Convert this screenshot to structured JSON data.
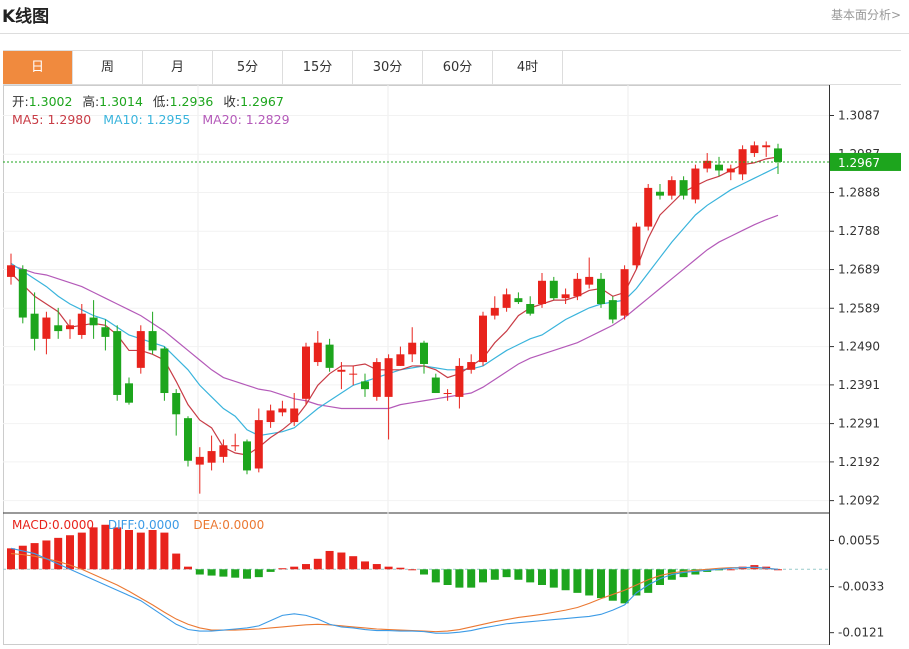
{
  "header": {
    "title": "K线图",
    "more_link": "基本面分析>"
  },
  "tabs": [
    {
      "label": "日",
      "active": true
    },
    {
      "label": "周",
      "active": false
    },
    {
      "label": "月",
      "active": false
    },
    {
      "label": "5分",
      "active": false
    },
    {
      "label": "15分",
      "active": false
    },
    {
      "label": "30分",
      "active": false
    },
    {
      "label": "60分",
      "active": false
    },
    {
      "label": "4时",
      "active": false
    }
  ],
  "colors": {
    "up": "#e8231c",
    "down": "#1da51d",
    "ma5": "#c83c46",
    "ma10": "#3ab4dc",
    "ma20": "#b45ab9",
    "dif": "#3c9be6",
    "dea": "#eb7832",
    "price_tag": "#1da51d",
    "accent_tab": "#f08a3e"
  },
  "chart_data": [
    {
      "type": "candlestick",
      "title": "",
      "info": {
        "open_label": "开:",
        "open": "1.3002",
        "high_label": "高:",
        "high": "1.3014",
        "low_label": "低:",
        "low": "1.2936",
        "close_label": "收:",
        "close": "1.2967"
      },
      "ma_legend": [
        {
          "name": "MA5",
          "text": "MA5: 1.2980"
        },
        {
          "name": "MA10",
          "text": "MA10: 1.2955"
        },
        {
          "name": "MA20",
          "text": "MA20: 1.2829"
        }
      ],
      "current_price": "1.2967",
      "ylim": [
        1.206,
        1.314
      ],
      "yticks": [
        "1.3087",
        "1.2987",
        "1.2888",
        "1.2788",
        "1.2689",
        "1.2589",
        "1.2490",
        "1.2391",
        "1.2291",
        "1.2192",
        "1.2092"
      ],
      "grid": true,
      "candles": [
        [
          1.267,
          1.27,
          1.273,
          1.265
        ],
        [
          1.269,
          1.2565,
          1.27,
          1.255
        ],
        [
          1.2575,
          1.251,
          1.263,
          1.248
        ],
        [
          1.251,
          1.2565,
          1.258,
          1.247
        ],
        [
          1.2545,
          1.253,
          1.259,
          1.251
        ],
        [
          1.2535,
          1.2545,
          1.256,
          1.251
        ],
        [
          1.252,
          1.2575,
          1.26,
          1.251
        ],
        [
          1.2565,
          1.2545,
          1.261,
          1.251
        ],
        [
          1.254,
          1.2515,
          1.256,
          1.248
        ],
        [
          1.253,
          1.2365,
          1.2545,
          1.235
        ],
        [
          1.2395,
          1.2345,
          1.241,
          1.234
        ],
        [
          1.2435,
          1.253,
          1.2545,
          1.242
        ],
        [
          1.253,
          1.248,
          1.258,
          1.247
        ],
        [
          1.2485,
          1.237,
          1.249,
          1.235
        ],
        [
          1.237,
          1.2315,
          1.238,
          1.226
        ],
        [
          1.2305,
          1.2195,
          1.231,
          1.218
        ],
        [
          1.2185,
          1.2205,
          1.223,
          1.211
        ],
        [
          1.219,
          1.222,
          1.226,
          1.217
        ],
        [
          1.2205,
          1.2235,
          1.225,
          1.219
        ],
        [
          1.2235,
          1.2235,
          1.2265,
          1.222
        ],
        [
          1.2245,
          1.217,
          1.225,
          1.216
        ],
        [
          1.2175,
          1.23,
          1.233,
          1.2165
        ],
        [
          1.2295,
          1.2325,
          1.234,
          1.228
        ],
        [
          1.232,
          1.233,
          1.235,
          1.231
        ],
        [
          1.2295,
          1.233,
          1.237,
          1.2285
        ],
        [
          1.2355,
          1.249,
          1.25,
          1.234
        ],
        [
          1.245,
          1.25,
          1.253,
          1.244
        ],
        [
          1.2495,
          1.2435,
          1.251,
          1.2425
        ],
        [
          1.2425,
          1.243,
          1.245,
          1.238
        ],
        [
          1.242,
          1.242,
          1.244,
          1.239
        ],
        [
          1.24,
          1.238,
          1.242,
          1.236
        ],
        [
          1.236,
          1.245,
          1.246,
          1.235
        ],
        [
          1.236,
          1.246,
          1.247,
          1.225
        ],
        [
          1.244,
          1.247,
          1.249,
          1.244
        ],
        [
          1.247,
          1.25,
          1.254,
          1.245
        ],
        [
          1.25,
          1.2445,
          1.2505,
          1.242
        ],
        [
          1.241,
          1.237,
          1.242,
          1.237
        ],
        [
          1.237,
          1.237,
          1.238,
          1.235
        ],
        [
          1.236,
          1.244,
          1.246,
          1.233
        ],
        [
          1.243,
          1.245,
          1.247,
          1.242
        ],
        [
          1.245,
          1.257,
          1.258,
          1.244
        ],
        [
          1.257,
          1.259,
          1.262,
          1.256
        ],
        [
          1.259,
          1.2625,
          1.264,
          1.258
        ],
        [
          1.2615,
          1.2605,
          1.263,
          1.26
        ],
        [
          1.26,
          1.2575,
          1.262,
          1.257
        ],
        [
          1.26,
          1.266,
          1.268,
          1.259
        ],
        [
          1.266,
          1.2615,
          1.267,
          1.261
        ],
        [
          1.2615,
          1.2625,
          1.264,
          1.26
        ],
        [
          1.262,
          1.2665,
          1.268,
          1.261
        ],
        [
          1.265,
          1.267,
          1.272,
          1.264
        ],
        [
          1.2665,
          1.26,
          1.268,
          1.259
        ],
        [
          1.261,
          1.256,
          1.262,
          1.255
        ],
        [
          1.257,
          1.269,
          1.27,
          1.256
        ],
        [
          1.27,
          1.28,
          1.281,
          1.269
        ],
        [
          1.28,
          1.29,
          1.291,
          1.279
        ],
        [
          1.289,
          1.288,
          1.291,
          1.287
        ],
        [
          1.288,
          1.292,
          1.293,
          1.287
        ],
        [
          1.292,
          1.288,
          1.293,
          1.287
        ],
        [
          1.287,
          1.295,
          1.296,
          1.286
        ],
        [
          1.295,
          1.297,
          1.299,
          1.294
        ],
        [
          1.296,
          1.2945,
          1.298,
          1.293
        ],
        [
          1.294,
          1.295,
          1.296,
          1.292
        ],
        [
          1.2935,
          1.3,
          1.301,
          1.292
        ],
        [
          1.299,
          1.301,
          1.302,
          1.298
        ],
        [
          1.3005,
          1.301,
          1.302,
          1.298
        ],
        [
          1.3002,
          1.2967,
          1.3014,
          1.2936
        ]
      ],
      "ma5": [
        1.268,
        1.265,
        1.262,
        1.26,
        1.258,
        1.254,
        1.2545,
        1.255,
        1.2545,
        1.252,
        1.248,
        1.248,
        1.247,
        1.2455,
        1.24,
        1.234,
        1.23,
        1.228,
        1.223,
        1.2215,
        1.221,
        1.223,
        1.2255,
        1.2275,
        1.23,
        1.234,
        1.239,
        1.242,
        1.244,
        1.244,
        1.2445,
        1.243,
        1.243,
        1.243,
        1.244,
        1.244,
        1.243,
        1.241,
        1.242,
        1.244,
        1.246,
        1.25,
        1.253,
        1.257,
        1.259,
        1.26,
        1.261,
        1.261,
        1.262,
        1.2635,
        1.264,
        1.262,
        1.263,
        1.269,
        1.277,
        1.283,
        1.286,
        1.289,
        1.2905,
        1.292,
        1.293,
        1.2945,
        1.296,
        1.2965,
        1.2975,
        1.298
      ],
      "ma10": [
        1.2705,
        1.2685,
        1.2665,
        1.2645,
        1.262,
        1.26,
        1.2585,
        1.257,
        1.256,
        1.254,
        1.252,
        1.251,
        1.25,
        1.249,
        1.246,
        1.243,
        1.239,
        1.236,
        1.233,
        1.231,
        1.2275,
        1.226,
        1.2265,
        1.227,
        1.228,
        1.2305,
        1.233,
        1.235,
        1.237,
        1.239,
        1.24,
        1.241,
        1.242,
        1.243,
        1.2435,
        1.244,
        1.2435,
        1.243,
        1.243,
        1.2432,
        1.244,
        1.246,
        1.248,
        1.2495,
        1.251,
        1.252,
        1.254,
        1.256,
        1.2575,
        1.259,
        1.26,
        1.2605,
        1.261,
        1.264,
        1.268,
        1.272,
        1.276,
        1.2795,
        1.283,
        1.2855,
        1.2875,
        1.2895,
        1.291,
        1.2925,
        1.294,
        1.2955
      ],
      "ma20": [
        1.27,
        1.269,
        1.268,
        1.2675,
        1.2665,
        1.2655,
        1.2645,
        1.263,
        1.2615,
        1.26,
        1.2585,
        1.257,
        1.255,
        1.253,
        1.2505,
        1.248,
        1.2455,
        1.243,
        1.241,
        1.24,
        1.239,
        1.238,
        1.2375,
        1.2365,
        1.2355,
        1.235,
        1.234,
        1.2335,
        1.233,
        1.233,
        1.233,
        1.233,
        1.233,
        1.234,
        1.2345,
        1.235,
        1.2355,
        1.236,
        1.2365,
        1.237,
        1.2385,
        1.2405,
        1.2425,
        1.2445,
        1.246,
        1.247,
        1.248,
        1.249,
        1.25,
        1.2515,
        1.253,
        1.2545,
        1.2565,
        1.259,
        1.2615,
        1.264,
        1.2665,
        1.269,
        1.2715,
        1.274,
        1.276,
        1.2775,
        1.279,
        1.2805,
        1.2818,
        1.2829
      ]
    },
    {
      "type": "macd",
      "title": "",
      "legend": [
        {
          "name": "MACD",
          "text": "MACD:0.0000"
        },
        {
          "name": "DIFF",
          "text": "DIFF:0.0000"
        },
        {
          "name": "DEA",
          "text": "DEA:0.0000"
        }
      ],
      "ylim": [
        -0.0135,
        0.0075
      ],
      "yticks": [
        "0.0055",
        "-0.0033",
        "-0.0121"
      ],
      "grid": true,
      "macd": [
        0.004,
        0.0045,
        0.005,
        0.0055,
        0.006,
        0.0065,
        0.007,
        0.008,
        0.0085,
        0.008,
        0.0075,
        0.007,
        0.0075,
        0.007,
        0.003,
        0.0005,
        -0.001,
        -0.0012,
        -0.0014,
        -0.0016,
        -0.0018,
        -0.0015,
        -0.0005,
        0.0002,
        0.0005,
        0.001,
        0.002,
        0.0035,
        0.0032,
        0.0025,
        0.0015,
        0.001,
        0.0005,
        0.0003,
        0.0,
        -0.001,
        -0.0025,
        -0.003,
        -0.0035,
        -0.0035,
        -0.0025,
        -0.002,
        -0.0015,
        -0.002,
        -0.0025,
        -0.003,
        -0.0035,
        -0.004,
        -0.0045,
        -0.005,
        -0.0055,
        -0.006,
        -0.0065,
        -0.005,
        -0.0045,
        -0.003,
        -0.002,
        -0.0015,
        -0.001,
        -0.0005,
        -0.0002,
        0.0,
        0.0005,
        0.0008,
        0.0005,
        0.0
      ],
      "dif": [
        0.004,
        0.0035,
        0.003,
        0.002,
        0.001,
        0.0,
        -0.001,
        -0.002,
        -0.003,
        -0.004,
        -0.005,
        -0.006,
        -0.0075,
        -0.009,
        -0.0105,
        -0.0115,
        -0.0118,
        -0.0118,
        -0.0116,
        -0.0114,
        -0.0112,
        -0.0108,
        -0.0098,
        -0.0088,
        -0.0085,
        -0.0088,
        -0.0095,
        -0.0105,
        -0.011,
        -0.0112,
        -0.0115,
        -0.0117,
        -0.0117,
        -0.0118,
        -0.0118,
        -0.0119,
        -0.0122,
        -0.0122,
        -0.012,
        -0.0117,
        -0.0112,
        -0.0108,
        -0.0104,
        -0.0102,
        -0.01,
        -0.0098,
        -0.0096,
        -0.0094,
        -0.0092,
        -0.009,
        -0.0086,
        -0.0078,
        -0.0068,
        -0.0045,
        -0.003,
        -0.0018,
        -0.001,
        -0.0006,
        -0.0004,
        -0.0002,
        0.0,
        0.0002,
        0.0003,
        0.0004,
        0.0002,
        0.0
      ],
      "dea": [
        0.003,
        0.0028,
        0.0025,
        0.002,
        0.0015,
        0.0008,
        0.0,
        -0.001,
        -0.002,
        -0.003,
        -0.0042,
        -0.0055,
        -0.0068,
        -0.0082,
        -0.0095,
        -0.0105,
        -0.0112,
        -0.0116,
        -0.0116,
        -0.0116,
        -0.0115,
        -0.0114,
        -0.0112,
        -0.011,
        -0.0108,
        -0.0106,
        -0.0105,
        -0.0106,
        -0.0108,
        -0.011,
        -0.0112,
        -0.0114,
        -0.0115,
        -0.0116,
        -0.0117,
        -0.0118,
        -0.0119,
        -0.0118,
        -0.0115,
        -0.011,
        -0.0105,
        -0.01,
        -0.0096,
        -0.0092,
        -0.0089,
        -0.0086,
        -0.0082,
        -0.0078,
        -0.0073,
        -0.0065,
        -0.0056,
        -0.0048,
        -0.004,
        -0.003,
        -0.002,
        -0.0012,
        -0.0007,
        -0.0004,
        -0.0002,
        0.0,
        0.0002,
        0.0003,
        0.0003,
        0.0003,
        0.0002,
        0.0
      ]
    }
  ]
}
